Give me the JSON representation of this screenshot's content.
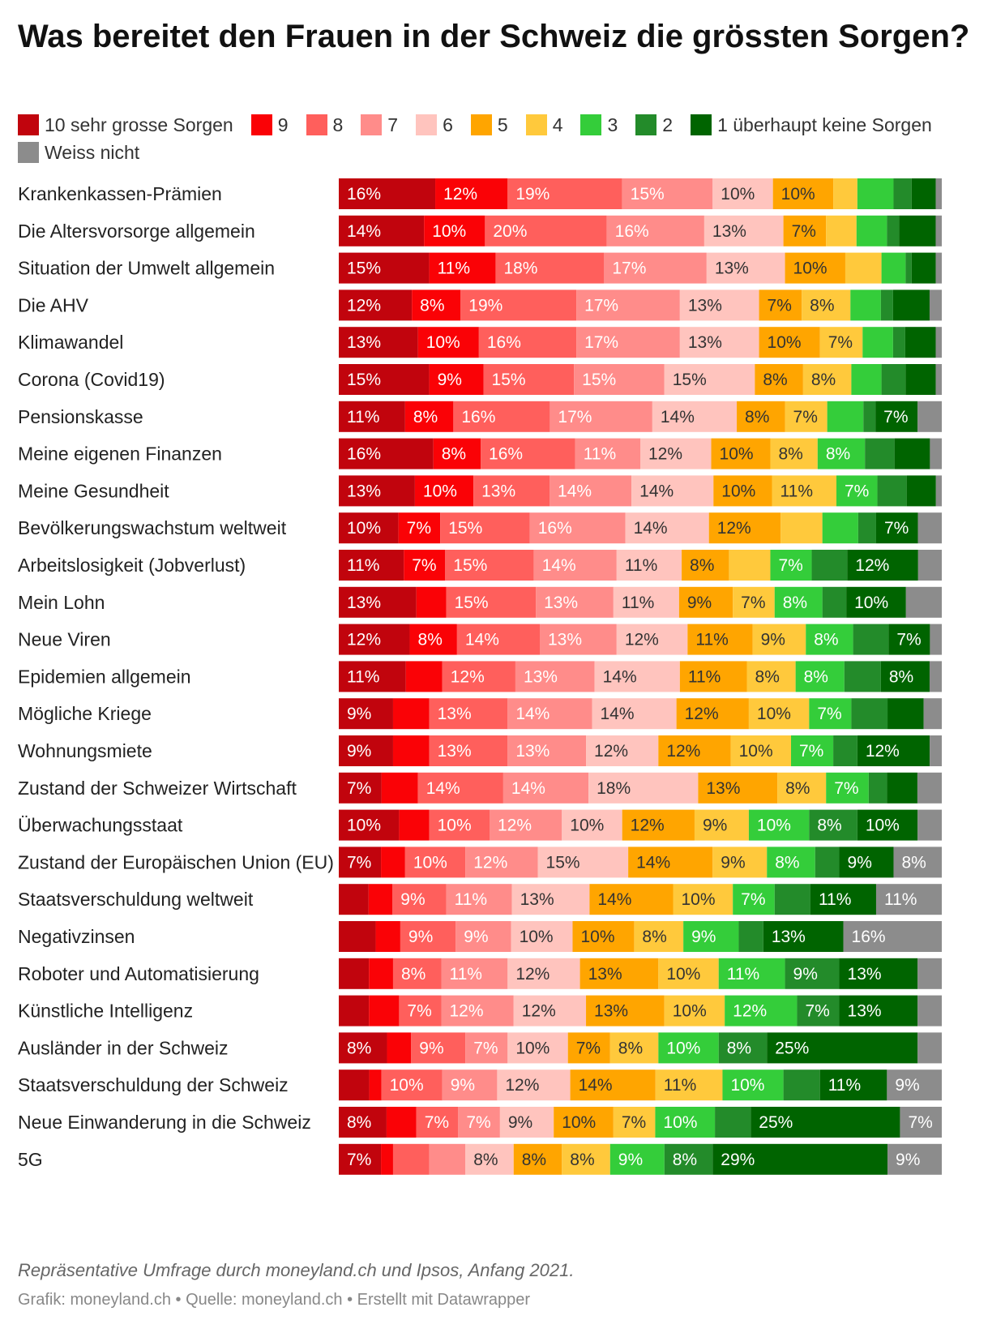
{
  "title": "Was bereitet den Frauen in der Schweiz die grössten Sorgen?",
  "footer": {
    "note": "Repräsentative Umfrage durch moneyland.ch und Ipsos, Anfang 2021.",
    "source": "Grafik: moneyland.ch • Quelle: moneyland.ch • Erstellt mit Datawrapper"
  },
  "chart_data": {
    "type": "bar",
    "orientation": "horizontal",
    "stacked": true,
    "unit": "%",
    "legend_position": "top",
    "categories": [
      "Krankenkassen-Prämien",
      "Die Altersvorsorge allgemein",
      "Situation der Umwelt allgemein",
      "Die AHV",
      "Klimawandel",
      "Corona (Covid19)",
      "Pensionskasse",
      "Meine eigenen Finanzen",
      "Meine Gesundheit",
      "Bevölkerungswachstum weltweit",
      "Arbeitslosigkeit (Jobverlust)",
      "Mein Lohn",
      "Neue Viren",
      "Epidemien allgemein",
      "Mögliche Kriege",
      "Wohnungsmiete",
      "Zustand der Schweizer Wirtschaft",
      "Überwachungsstaat",
      "Zustand der Europäischen Union (EU)",
      "Staatsverschuldung weltweit",
      "Negativzinsen",
      "Roboter und Automatisierung",
      "Künstliche Intelligenz",
      "Ausländer in der Schweiz",
      "Staatsverschuldung der Schweiz",
      "Neue Einwanderung in die Schweiz",
      "5G"
    ],
    "series": [
      {
        "name": "10 sehr grosse Sorgen",
        "color": "#c1040d",
        "values": [
          16,
          14,
          15,
          12,
          13,
          15,
          11,
          16,
          13,
          10,
          11,
          13,
          12,
          11,
          9,
          9,
          7,
          10,
          7,
          5,
          6,
          5,
          5,
          8,
          5,
          8,
          7
        ]
      },
      {
        "name": "9",
        "color": "#fa0206",
        "values": [
          12,
          10,
          11,
          8,
          10,
          9,
          8,
          8,
          10,
          7,
          7,
          5,
          8,
          6,
          6,
          6,
          6,
          5,
          4,
          4,
          4,
          4,
          5,
          4,
          2,
          5,
          2
        ]
      },
      {
        "name": "8",
        "color": "#ff5f5c",
        "values": [
          19,
          20,
          18,
          19,
          16,
          15,
          16,
          16,
          13,
          15,
          15,
          15,
          14,
          12,
          13,
          13,
          14,
          10,
          10,
          9,
          9,
          8,
          7,
          9,
          10,
          7,
          6
        ]
      },
      {
        "name": "7",
        "color": "#ff8c8a",
        "values": [
          15,
          16,
          17,
          17,
          17,
          15,
          17,
          11,
          14,
          16,
          14,
          13,
          13,
          13,
          14,
          13,
          14,
          12,
          12,
          11,
          9,
          11,
          12,
          7,
          9,
          7,
          6
        ]
      },
      {
        "name": "6",
        "color": "#ffc4be",
        "values": [
          10,
          13,
          13,
          13,
          13,
          15,
          14,
          12,
          14,
          14,
          11,
          11,
          12,
          14,
          14,
          12,
          18,
          10,
          15,
          13,
          10,
          12,
          12,
          10,
          12,
          9,
          8
        ]
      },
      {
        "name": "5",
        "color": "#ffa500",
        "values": [
          10,
          7,
          10,
          7,
          10,
          8,
          8,
          10,
          10,
          12,
          8,
          9,
          11,
          11,
          12,
          12,
          13,
          12,
          14,
          14,
          10,
          13,
          13,
          7,
          14,
          10,
          8
        ]
      },
      {
        "name": "4",
        "color": "#ffc93c",
        "values": [
          4,
          5,
          6,
          8,
          7,
          8,
          7,
          8,
          11,
          7,
          7,
          7,
          9,
          8,
          10,
          10,
          8,
          9,
          9,
          10,
          8,
          10,
          10,
          8,
          11,
          7,
          8
        ]
      },
      {
        "name": "3",
        "color": "#34cd3a",
        "values": [
          6,
          5,
          4,
          5,
          5,
          5,
          6,
          8,
          7,
          6,
          7,
          8,
          8,
          8,
          7,
          7,
          7,
          10,
          8,
          7,
          9,
          11,
          12,
          10,
          10,
          10,
          9
        ]
      },
      {
        "name": "2",
        "color": "#238b2a",
        "values": [
          3,
          2,
          1,
          2,
          2,
          4,
          2,
          5,
          5,
          3,
          6,
          4,
          6,
          6,
          6,
          4,
          3,
          8,
          4,
          6,
          4,
          9,
          7,
          8,
          6,
          6,
          8
        ]
      },
      {
        "name": "1 überhaupt keine Sorgen",
        "color": "#006400",
        "values": [
          4,
          6,
          4,
          6,
          5,
          5,
          7,
          6,
          5,
          7,
          12,
          10,
          7,
          8,
          6,
          12,
          5,
          10,
          9,
          11,
          13,
          13,
          13,
          25,
          11,
          25,
          29
        ]
      },
      {
        "name": "Weiss nicht",
        "color": "#8c8c8c",
        "values": [
          1,
          1,
          1,
          2,
          1,
          1,
          4,
          2,
          1,
          4,
          4,
          6,
          2,
          2,
          3,
          2,
          4,
          4,
          8,
          11,
          16,
          4,
          4,
          4,
          9,
          7,
          9
        ]
      }
    ],
    "labels": [
      [
        "16%",
        "12%",
        "19%",
        "15%",
        "10%",
        "10%",
        "",
        "",
        "",
        "",
        ""
      ],
      [
        "14%",
        "10%",
        "20%",
        "16%",
        "13%",
        "7%",
        "",
        "",
        "",
        "",
        ""
      ],
      [
        "15%",
        "11%",
        "18%",
        "17%",
        "13%",
        "10%",
        "",
        "",
        "",
        "",
        ""
      ],
      [
        "12%",
        "8%",
        "19%",
        "17%",
        "13%",
        "7%",
        "8%",
        "",
        "",
        "",
        ""
      ],
      [
        "13%",
        "10%",
        "16%",
        "17%",
        "13%",
        "10%",
        "7%",
        "",
        "",
        "",
        ""
      ],
      [
        "15%",
        "9%",
        "15%",
        "15%",
        "15%",
        "8%",
        "8%",
        "",
        "",
        "",
        ""
      ],
      [
        "11%",
        "8%",
        "16%",
        "17%",
        "14%",
        "8%",
        "7%",
        "",
        "",
        "7%",
        ""
      ],
      [
        "16%",
        "8%",
        "16%",
        "11%",
        "12%",
        "10%",
        "8%",
        "8%",
        "",
        "",
        ""
      ],
      [
        "13%",
        "10%",
        "13%",
        "14%",
        "14%",
        "10%",
        "11%",
        "7%",
        "",
        "",
        ""
      ],
      [
        "10%",
        "7%",
        "15%",
        "16%",
        "14%",
        "12%",
        "",
        "",
        "",
        "7%",
        ""
      ],
      [
        "11%",
        "7%",
        "15%",
        "14%",
        "11%",
        "8%",
        "",
        "7%",
        "",
        "12%",
        ""
      ],
      [
        "13%",
        "",
        "15%",
        "13%",
        "11%",
        "9%",
        "7%",
        "8%",
        "",
        "10%",
        ""
      ],
      [
        "12%",
        "8%",
        "14%",
        "13%",
        "12%",
        "11%",
        "9%",
        "8%",
        "",
        "7%",
        ""
      ],
      [
        "11%",
        "",
        "12%",
        "13%",
        "14%",
        "11%",
        "8%",
        "8%",
        "",
        "8%",
        ""
      ],
      [
        "9%",
        "",
        "13%",
        "14%",
        "14%",
        "12%",
        "10%",
        "7%",
        "",
        "",
        ""
      ],
      [
        "9%",
        "",
        "13%",
        "13%",
        "12%",
        "12%",
        "10%",
        "7%",
        "",
        "12%",
        ""
      ],
      [
        "7%",
        "",
        "14%",
        "14%",
        "18%",
        "13%",
        "8%",
        "7%",
        "",
        "",
        ""
      ],
      [
        "10%",
        "",
        "10%",
        "12%",
        "10%",
        "12%",
        "9%",
        "10%",
        "8%",
        "10%",
        ""
      ],
      [
        "7%",
        "",
        "10%",
        "12%",
        "15%",
        "14%",
        "9%",
        "8%",
        "",
        "9%",
        "8%"
      ],
      [
        "",
        "",
        "9%",
        "11%",
        "13%",
        "14%",
        "10%",
        "7%",
        "",
        "11%",
        "11%"
      ],
      [
        "",
        "",
        "9%",
        "9%",
        "10%",
        "10%",
        "8%",
        "9%",
        "",
        "13%",
        "16%"
      ],
      [
        "",
        "",
        "8%",
        "11%",
        "12%",
        "13%",
        "10%",
        "11%",
        "9%",
        "13%",
        ""
      ],
      [
        "",
        "",
        "7%",
        "12%",
        "12%",
        "13%",
        "10%",
        "12%",
        "7%",
        "13%",
        ""
      ],
      [
        "8%",
        "",
        "9%",
        "7%",
        "10%",
        "7%",
        "8%",
        "10%",
        "8%",
        "25%",
        ""
      ],
      [
        "",
        "",
        "10%",
        "9%",
        "12%",
        "14%",
        "11%",
        "10%",
        "",
        "11%",
        "9%"
      ],
      [
        "8%",
        "",
        "7%",
        "7%",
        "9%",
        "10%",
        "7%",
        "10%",
        "",
        "25%",
        "7%"
      ],
      [
        "7%",
        "",
        "",
        "",
        "8%",
        "8%",
        "8%",
        "9%",
        "8%",
        "29%",
        "9%"
      ]
    ]
  }
}
